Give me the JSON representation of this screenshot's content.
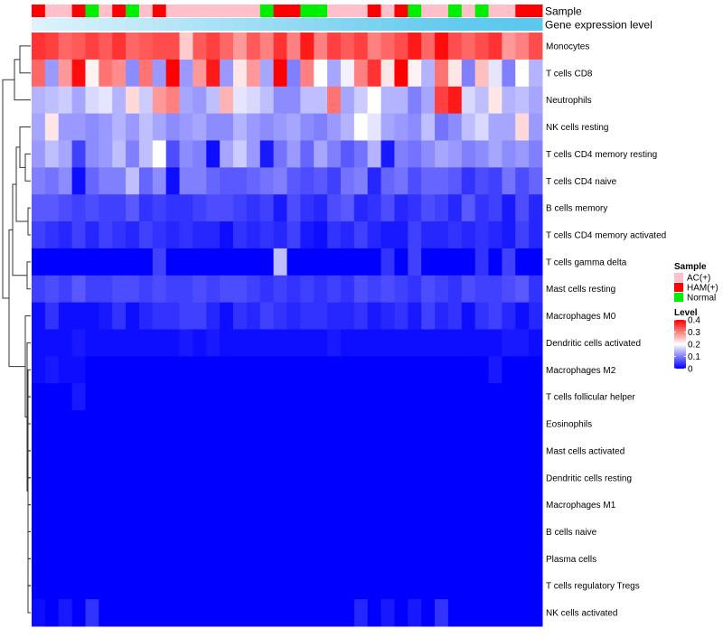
{
  "chart_data": {
    "type": "heatmap",
    "annotation_rows": [
      "Sample",
      "Gene expression level"
    ],
    "sample_annotation": [
      "HAM(+)",
      "AC(+)",
      "AC(+)",
      "HAM(+)",
      "Normal",
      "AC(+)",
      "HAM(+)",
      "Normal",
      "AC(+)",
      "HAM(+)",
      "AC(+)",
      "AC(+)",
      "AC(+)",
      "AC(+)",
      "AC(+)",
      "AC(+)",
      "AC(+)",
      "Normal",
      "HAM(+)",
      "HAM(+)",
      "Normal",
      "Normal",
      "AC(+)",
      "AC(+)",
      "AC(+)",
      "HAM(+)",
      "AC(+)",
      "HAM(+)",
      "Normal",
      "AC(+)",
      "AC(+)",
      "Normal",
      "AC(+)",
      "Normal",
      "AC(+)",
      "AC(+)",
      "HAM(+)",
      "HAM(+)"
    ],
    "expression_level_bar": [
      0.02,
      0.05,
      0.08,
      0.11,
      0.14,
      0.17,
      0.2,
      0.23,
      0.26,
      0.29,
      0.32,
      0.35,
      0.38,
      0.41,
      0.44,
      0.47,
      0.5,
      0.53,
      0.56,
      0.59,
      0.62,
      0.65,
      0.68,
      0.71,
      0.74,
      0.77,
      0.8,
      0.83,
      0.86,
      0.89,
      0.91,
      0.93,
      0.95,
      0.96,
      0.97,
      0.98,
      0.99,
      1.0
    ],
    "rows": [
      {
        "name": "Monocytes",
        "values": [
          0.36,
          0.35,
          0.32,
          0.33,
          0.35,
          0.33,
          0.36,
          0.32,
          0.33,
          0.34,
          0.34,
          0.24,
          0.33,
          0.35,
          0.32,
          0.28,
          0.33,
          0.3,
          0.36,
          0.3,
          0.38,
          0.3,
          0.35,
          0.33,
          0.35,
          0.3,
          0.32,
          0.34,
          0.38,
          0.32,
          0.39,
          0.34,
          0.32,
          0.34,
          0.36,
          0.28,
          0.3,
          0.34
        ]
      },
      {
        "name": "T cells CD8",
        "values": [
          0.32,
          0.12,
          0.28,
          0.39,
          0.21,
          0.31,
          0.29,
          0.11,
          0.31,
          0.12,
          0.4,
          0.12,
          0.28,
          0.38,
          0.12,
          0.22,
          0.28,
          0.13,
          0.4,
          0.1,
          0.3,
          0.2,
          0.13,
          0.19,
          0.3,
          0.36,
          0.22,
          0.41,
          0.21,
          0.14,
          0.31,
          0.22,
          0.1,
          0.25,
          0.18,
          0.1,
          0.2,
          0.14
        ]
      },
      {
        "name": "Neutrophils",
        "values": [
          0.14,
          0.15,
          0.16,
          0.13,
          0.17,
          0.18,
          0.14,
          0.23,
          0.16,
          0.28,
          0.3,
          0.13,
          0.12,
          0.15,
          0.26,
          0.18,
          0.17,
          0.15,
          0.11,
          0.11,
          0.15,
          0.15,
          0.31,
          0.13,
          0.16,
          0.2,
          0.14,
          0.14,
          0.1,
          0.13,
          0.35,
          0.38,
          0.17,
          0.15,
          0.22,
          0.14,
          0.15,
          0.13
        ]
      },
      {
        "name": "NK cells resting",
        "values": [
          0.13,
          0.22,
          0.12,
          0.12,
          0.11,
          0.12,
          0.14,
          0.12,
          0.15,
          0.13,
          0.11,
          0.12,
          0.13,
          0.11,
          0.11,
          0.14,
          0.12,
          0.11,
          0.12,
          0.13,
          0.11,
          0.1,
          0.12,
          0.14,
          0.2,
          0.18,
          0.13,
          0.12,
          0.11,
          0.15,
          0.09,
          0.11,
          0.15,
          0.17,
          0.13,
          0.13,
          0.23,
          0.12
        ]
      },
      {
        "name": "T cells CD4 memory resting",
        "values": [
          0.12,
          0.15,
          0.13,
          0.05,
          0.11,
          0.12,
          0.15,
          0.1,
          0.15,
          0.2,
          0.06,
          0.11,
          0.1,
          0.01,
          0.13,
          0.16,
          0.12,
          0.02,
          0.09,
          0.12,
          0.08,
          0.13,
          0.1,
          0.07,
          0.09,
          0.14,
          0.02,
          0.1,
          0.09,
          0.11,
          0.13,
          0.12,
          0.1,
          0.11,
          0.13,
          0.11,
          0.12,
          0.1
        ]
      },
      {
        "name": "T cells CD4 naive",
        "values": [
          0.1,
          0.09,
          0.11,
          0.01,
          0.08,
          0.1,
          0.1,
          0.15,
          0.08,
          0.11,
          0.01,
          0.1,
          0.1,
          0.08,
          0.07,
          0.07,
          0.08,
          0.09,
          0.1,
          0.07,
          0.06,
          0.07,
          0.05,
          0.09,
          0.1,
          0.03,
          0.08,
          0.09,
          0.06,
          0.08,
          0.08,
          0.07,
          0.04,
          0.06,
          0.05,
          0.09,
          0.06,
          0.08
        ]
      },
      {
        "name": "B cells memory",
        "values": [
          0.07,
          0.07,
          0.06,
          0.05,
          0.06,
          0.05,
          0.05,
          0.07,
          0.04,
          0.05,
          0.04,
          0.04,
          0.05,
          0.06,
          0.06,
          0.05,
          0.04,
          0.05,
          0.02,
          0.06,
          0.04,
          0.03,
          0.06,
          0.07,
          0.03,
          0.04,
          0.06,
          0.03,
          0.04,
          0.06,
          0.05,
          0.03,
          0.07,
          0.04,
          0.05,
          0.02,
          0.06,
          0.03
        ]
      },
      {
        "name": "T cells CD4 memory activated",
        "values": [
          0.05,
          0.04,
          0.03,
          0.05,
          0.03,
          0.05,
          0.04,
          0.03,
          0.05,
          0.04,
          0.03,
          0.04,
          0.03,
          0.03,
          0.01,
          0.04,
          0.03,
          0.04,
          0.03,
          0.05,
          0.02,
          0.01,
          0.04,
          0.03,
          0.05,
          0.03,
          0.02,
          0.02,
          0.05,
          0.03,
          0.03,
          0.04,
          0.03,
          0.04,
          0.03,
          0.02,
          0.05,
          0.03
        ]
      },
      {
        "name": "T cells gamma delta",
        "values": [
          0.0,
          0.0,
          0.0,
          0.0,
          0.0,
          0.0,
          0.0,
          0.0,
          0.0,
          0.05,
          0.0,
          0.0,
          0.0,
          0.0,
          0.0,
          0.0,
          0.0,
          0.0,
          0.15,
          0.0,
          0.0,
          0.0,
          0.0,
          0.0,
          0.0,
          0.0,
          0.04,
          0.0,
          0.05,
          0.0,
          0.0,
          0.0,
          0.0,
          0.04,
          0.0,
          0.05,
          0.0,
          0.0
        ]
      },
      {
        "name": "Mast cells resting",
        "values": [
          0.05,
          0.06,
          0.05,
          0.07,
          0.05,
          0.05,
          0.06,
          0.06,
          0.05,
          0.06,
          0.05,
          0.05,
          0.06,
          0.05,
          0.06,
          0.06,
          0.05,
          0.04,
          0.05,
          0.04,
          0.05,
          0.04,
          0.05,
          0.04,
          0.06,
          0.05,
          0.06,
          0.05,
          0.04,
          0.06,
          0.05,
          0.04,
          0.06,
          0.05,
          0.05,
          0.06,
          0.07,
          0.04
        ]
      },
      {
        "name": "Macrophages M0",
        "values": [
          0.01,
          0.04,
          0.01,
          0.01,
          0.01,
          0.02,
          0.04,
          0.01,
          0.03,
          0.04,
          0.04,
          0.05,
          0.05,
          0.03,
          0.01,
          0.04,
          0.03,
          0.05,
          0.04,
          0.03,
          0.04,
          0.04,
          0.03,
          0.03,
          0.04,
          0.02,
          0.03,
          0.04,
          0.02,
          0.05,
          0.03,
          0.04,
          0.01,
          0.04,
          0.05,
          0.03,
          0.01,
          0.03
        ]
      },
      {
        "name": "Dendritic cells activated",
        "values": [
          0.01,
          0.01,
          0.01,
          0.02,
          0.01,
          0.01,
          0.01,
          0.01,
          0.01,
          0.01,
          0.01,
          0.02,
          0.01,
          0.02,
          0.01,
          0.01,
          0.01,
          0.01,
          0.01,
          0.01,
          0.01,
          0.01,
          0.02,
          0.01,
          0.01,
          0.01,
          0.01,
          0.01,
          0.01,
          0.01,
          0.01,
          0.01,
          0.01,
          0.01,
          0.01,
          0.02,
          0.02,
          0.01
        ]
      },
      {
        "name": "Macrophages M2",
        "values": [
          0.01,
          0.02,
          0.01,
          0.01,
          0.0,
          0.0,
          0.0,
          0.0,
          0.0,
          0.0,
          0.0,
          0.0,
          0.0,
          0.0,
          0.0,
          0.0,
          0.0,
          0.0,
          0.0,
          0.0,
          0.0,
          0.0,
          0.0,
          0.0,
          0.0,
          0.0,
          0.0,
          0.0,
          0.0,
          0.0,
          0.0,
          0.0,
          0.0,
          0.0,
          0.02,
          0.0,
          0.0,
          0.0
        ]
      },
      {
        "name": "T cells follicular helper",
        "values": [
          0.0,
          0.0,
          0.0,
          0.02,
          0.0,
          0.0,
          0.0,
          0.0,
          0.0,
          0.0,
          0.0,
          0.0,
          0.0,
          0.0,
          0.0,
          0.0,
          0.0,
          0.0,
          0.0,
          0.0,
          0.0,
          0.0,
          0.0,
          0.0,
          0.0,
          0.0,
          0.0,
          0.0,
          0.0,
          0.0,
          0.0,
          0.0,
          0.0,
          0.0,
          0.0,
          0.0,
          0.0,
          0.0
        ]
      },
      {
        "name": "Eosinophils",
        "values": [
          0.0,
          0.0,
          0.0,
          0.0,
          0.0,
          0.0,
          0.0,
          0.0,
          0.0,
          0.0,
          0.0,
          0.0,
          0.0,
          0.0,
          0.0,
          0.0,
          0.0,
          0.0,
          0.0,
          0.0,
          0.0,
          0.0,
          0.0,
          0.0,
          0.0,
          0.0,
          0.0,
          0.0,
          0.0,
          0.0,
          0.0,
          0.0,
          0.0,
          0.0,
          0.0,
          0.0,
          0.0,
          0.0
        ]
      },
      {
        "name": "Mast cells activated",
        "values": [
          0.0,
          0.0,
          0.0,
          0.0,
          0.0,
          0.0,
          0.0,
          0.0,
          0.0,
          0.0,
          0.0,
          0.0,
          0.0,
          0.0,
          0.0,
          0.0,
          0.0,
          0.0,
          0.0,
          0.0,
          0.0,
          0.0,
          0.0,
          0.0,
          0.0,
          0.0,
          0.0,
          0.0,
          0.0,
          0.0,
          0.0,
          0.0,
          0.0,
          0.0,
          0.0,
          0.0,
          0.0,
          0.0
        ]
      },
      {
        "name": "Dendritic cells resting",
        "values": [
          0.0,
          0.0,
          0.0,
          0.0,
          0.0,
          0.0,
          0.0,
          0.0,
          0.0,
          0.0,
          0.0,
          0.0,
          0.0,
          0.0,
          0.0,
          0.0,
          0.0,
          0.0,
          0.0,
          0.0,
          0.0,
          0.0,
          0.0,
          0.0,
          0.0,
          0.0,
          0.0,
          0.0,
          0.0,
          0.0,
          0.0,
          0.0,
          0.0,
          0.0,
          0.0,
          0.0,
          0.0,
          0.0
        ]
      },
      {
        "name": "Macrophages M1",
        "values": [
          0.0,
          0.0,
          0.0,
          0.0,
          0.0,
          0.0,
          0.0,
          0.0,
          0.0,
          0.0,
          0.0,
          0.0,
          0.0,
          0.0,
          0.0,
          0.0,
          0.0,
          0.0,
          0.0,
          0.0,
          0.0,
          0.0,
          0.0,
          0.0,
          0.0,
          0.0,
          0.0,
          0.0,
          0.0,
          0.0,
          0.0,
          0.0,
          0.0,
          0.0,
          0.0,
          0.0,
          0.0,
          0.0
        ]
      },
      {
        "name": "B cells naive",
        "values": [
          0.0,
          0.0,
          0.0,
          0.0,
          0.0,
          0.0,
          0.0,
          0.0,
          0.0,
          0.0,
          0.0,
          0.0,
          0.0,
          0.0,
          0.0,
          0.0,
          0.0,
          0.0,
          0.0,
          0.0,
          0.0,
          0.0,
          0.0,
          0.0,
          0.0,
          0.0,
          0.0,
          0.0,
          0.0,
          0.0,
          0.0,
          0.0,
          0.0,
          0.0,
          0.0,
          0.0,
          0.0,
          0.0
        ]
      },
      {
        "name": "Plasma cells",
        "values": [
          0.0,
          0.0,
          0.0,
          0.0,
          0.0,
          0.0,
          0.0,
          0.0,
          0.0,
          0.0,
          0.0,
          0.0,
          0.0,
          0.0,
          0.0,
          0.0,
          0.0,
          0.0,
          0.0,
          0.0,
          0.0,
          0.0,
          0.0,
          0.0,
          0.0,
          0.0,
          0.0,
          0.0,
          0.0,
          0.0,
          0.0,
          0.0,
          0.0,
          0.0,
          0.0,
          0.0,
          0.0,
          0.0
        ]
      },
      {
        "name": "T cells regulatory  Tregs",
        "values": [
          0.0,
          0.0,
          0.0,
          0.0,
          0.0,
          0.0,
          0.0,
          0.0,
          0.0,
          0.0,
          0.0,
          0.0,
          0.0,
          0.0,
          0.0,
          0.0,
          0.0,
          0.0,
          0.0,
          0.0,
          0.0,
          0.0,
          0.0,
          0.0,
          0.0,
          0.0,
          0.0,
          0.0,
          0.0,
          0.0,
          0.0,
          0.0,
          0.0,
          0.0,
          0.0,
          0.0,
          0.0,
          0.0
        ]
      },
      {
        "name": "NK cells activated",
        "values": [
          0.01,
          0.0,
          0.02,
          0.0,
          0.04,
          0.0,
          0.0,
          0.0,
          0.0,
          0.0,
          0.0,
          0.0,
          0.0,
          0.0,
          0.0,
          0.0,
          0.0,
          0.0,
          0.0,
          0.0,
          0.0,
          0.0,
          0.0,
          0.0,
          0.03,
          0.0,
          0.02,
          0.0,
          0.02,
          0.0,
          0.04,
          0.0,
          0.0,
          0.0,
          0.0,
          0.0,
          0.0,
          0.0
        ]
      }
    ],
    "legend": {
      "sample_title": "Sample",
      "sample_entries": [
        {
          "label": "AC(+)",
          "color": "#ffc0cb"
        },
        {
          "label": "HAM(+)",
          "color": "#ff0000"
        },
        {
          "label": "Normal",
          "color": "#00ee00"
        }
      ],
      "level_title": "Level",
      "level_ticks": [
        "0.4",
        "0.3",
        "0.2",
        "0.1",
        "0"
      ],
      "level_min": 0,
      "level_max": 0.4
    },
    "colors": {
      "low": "#0000ff",
      "mid": "#ffffff",
      "high": "#ff0000",
      "expr_low": "#e0f3fb",
      "expr_high": "#5bc8ee"
    }
  }
}
